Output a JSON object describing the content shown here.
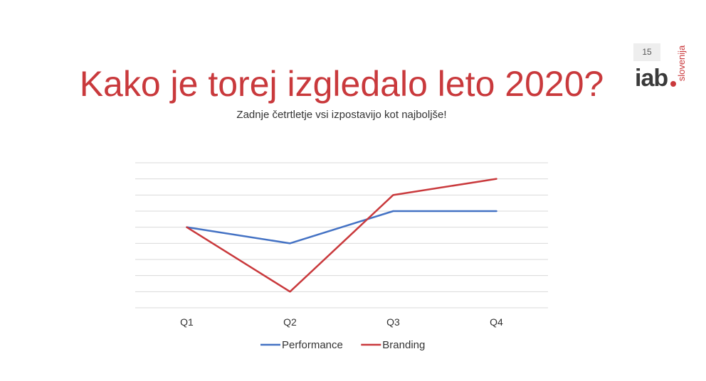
{
  "page": {
    "title": "Kako je torej izgledalo leto 2020?",
    "subtitle": "Zadnje četrtletje vsi izpostavijo kot najboljše!",
    "page_number": "15"
  },
  "logo": {
    "main": "iab",
    "country": "slovenija",
    "dot_color": "#c9393c"
  },
  "chart_data": {
    "type": "line",
    "categories": [
      "Q1",
      "Q2",
      "Q3",
      "Q4"
    ],
    "series": [
      {
        "name": "Performance",
        "color": "#4472c4",
        "values": [
          5,
          4,
          6,
          6
        ]
      },
      {
        "name": "Branding",
        "color": "#c9393c",
        "values": [
          5,
          1,
          7,
          8
        ]
      }
    ],
    "ylim": [
      0,
      9
    ],
    "grid": true,
    "ytick_labels_visible": false,
    "legend": "bottom"
  }
}
